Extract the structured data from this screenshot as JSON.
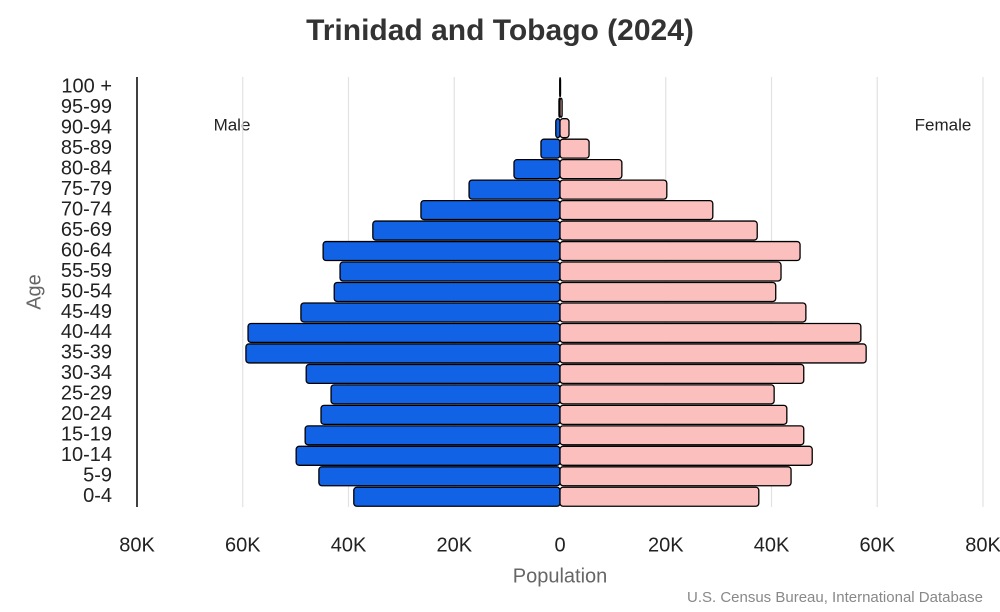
{
  "chart_data": {
    "type": "pyramid",
    "title": "Trinidad and Tobago (2024)",
    "x_label": "Population",
    "y_label": "Age",
    "source": "U.S. Census Bureau, International Database",
    "categories": [
      "0-4",
      "5-9",
      "10-14",
      "15-19",
      "20-24",
      "25-29",
      "30-34",
      "35-39",
      "40-44",
      "45-49",
      "50-54",
      "55-59",
      "60-64",
      "65-69",
      "70-74",
      "75-79",
      "80-84",
      "85-89",
      "90-94",
      "95-99",
      "100 +"
    ],
    "series": [
      {
        "name": "Male",
        "color": "#1262e6",
        "values": [
          39000,
          45600,
          49900,
          48200,
          45200,
          43300,
          48000,
          59400,
          59000,
          49000,
          42700,
          41600,
          44800,
          35400,
          26300,
          17200,
          8700,
          3600,
          800,
          200,
          50
        ]
      },
      {
        "name": "Female",
        "color": "#fbc0be",
        "values": [
          37600,
          43700,
          47700,
          46100,
          42900,
          40500,
          46100,
          57900,
          56900,
          46500,
          40800,
          41800,
          45400,
          37300,
          28900,
          20200,
          11700,
          5500,
          1700,
          400,
          100
        ]
      }
    ],
    "xlim": [
      -80000,
      80000
    ],
    "xticks": [
      {
        "value": -80000,
        "label": "80K"
      },
      {
        "value": -60000,
        "label": "60K"
      },
      {
        "value": -40000,
        "label": "40K"
      },
      {
        "value": -20000,
        "label": "20K"
      },
      0,
      {
        "value": 20000,
        "label": "20K"
      },
      {
        "value": 40000,
        "label": "40K"
      },
      {
        "value": 60000,
        "label": "60K"
      },
      {
        "value": 80000,
        "label": "80K"
      }
    ],
    "grid": true
  }
}
